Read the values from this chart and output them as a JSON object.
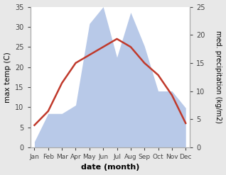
{
  "months": [
    "Jan",
    "Feb",
    "Mar",
    "Apr",
    "May",
    "Jun",
    "Jul",
    "Aug",
    "Sep",
    "Oct",
    "Nov",
    "Dec"
  ],
  "temperature": [
    5.5,
    9.0,
    16.0,
    21.0,
    23.0,
    25.0,
    27.0,
    25.0,
    21.0,
    18.0,
    13.0,
    6.0
  ],
  "precipitation": [
    1.0,
    6.0,
    6.0,
    7.5,
    22.0,
    25.0,
    16.0,
    24.0,
    18.0,
    10.0,
    10.0,
    7.0
  ],
  "temp_ylim": [
    0,
    35
  ],
  "precip_ylim": [
    0,
    25
  ],
  "temp_color": "#c0392b",
  "precip_color": "#b8c9e8",
  "xlabel": "date (month)",
  "ylabel_left": "max temp (C)",
  "ylabel_right": "med. precipitation (kg/m2)",
  "temp_yticks": [
    0,
    5,
    10,
    15,
    20,
    25,
    30,
    35
  ],
  "precip_yticks": [
    0,
    5,
    10,
    15,
    20,
    25
  ],
  "fig_facecolor": "#e8e8e8",
  "axes_facecolor": "#ffffff"
}
